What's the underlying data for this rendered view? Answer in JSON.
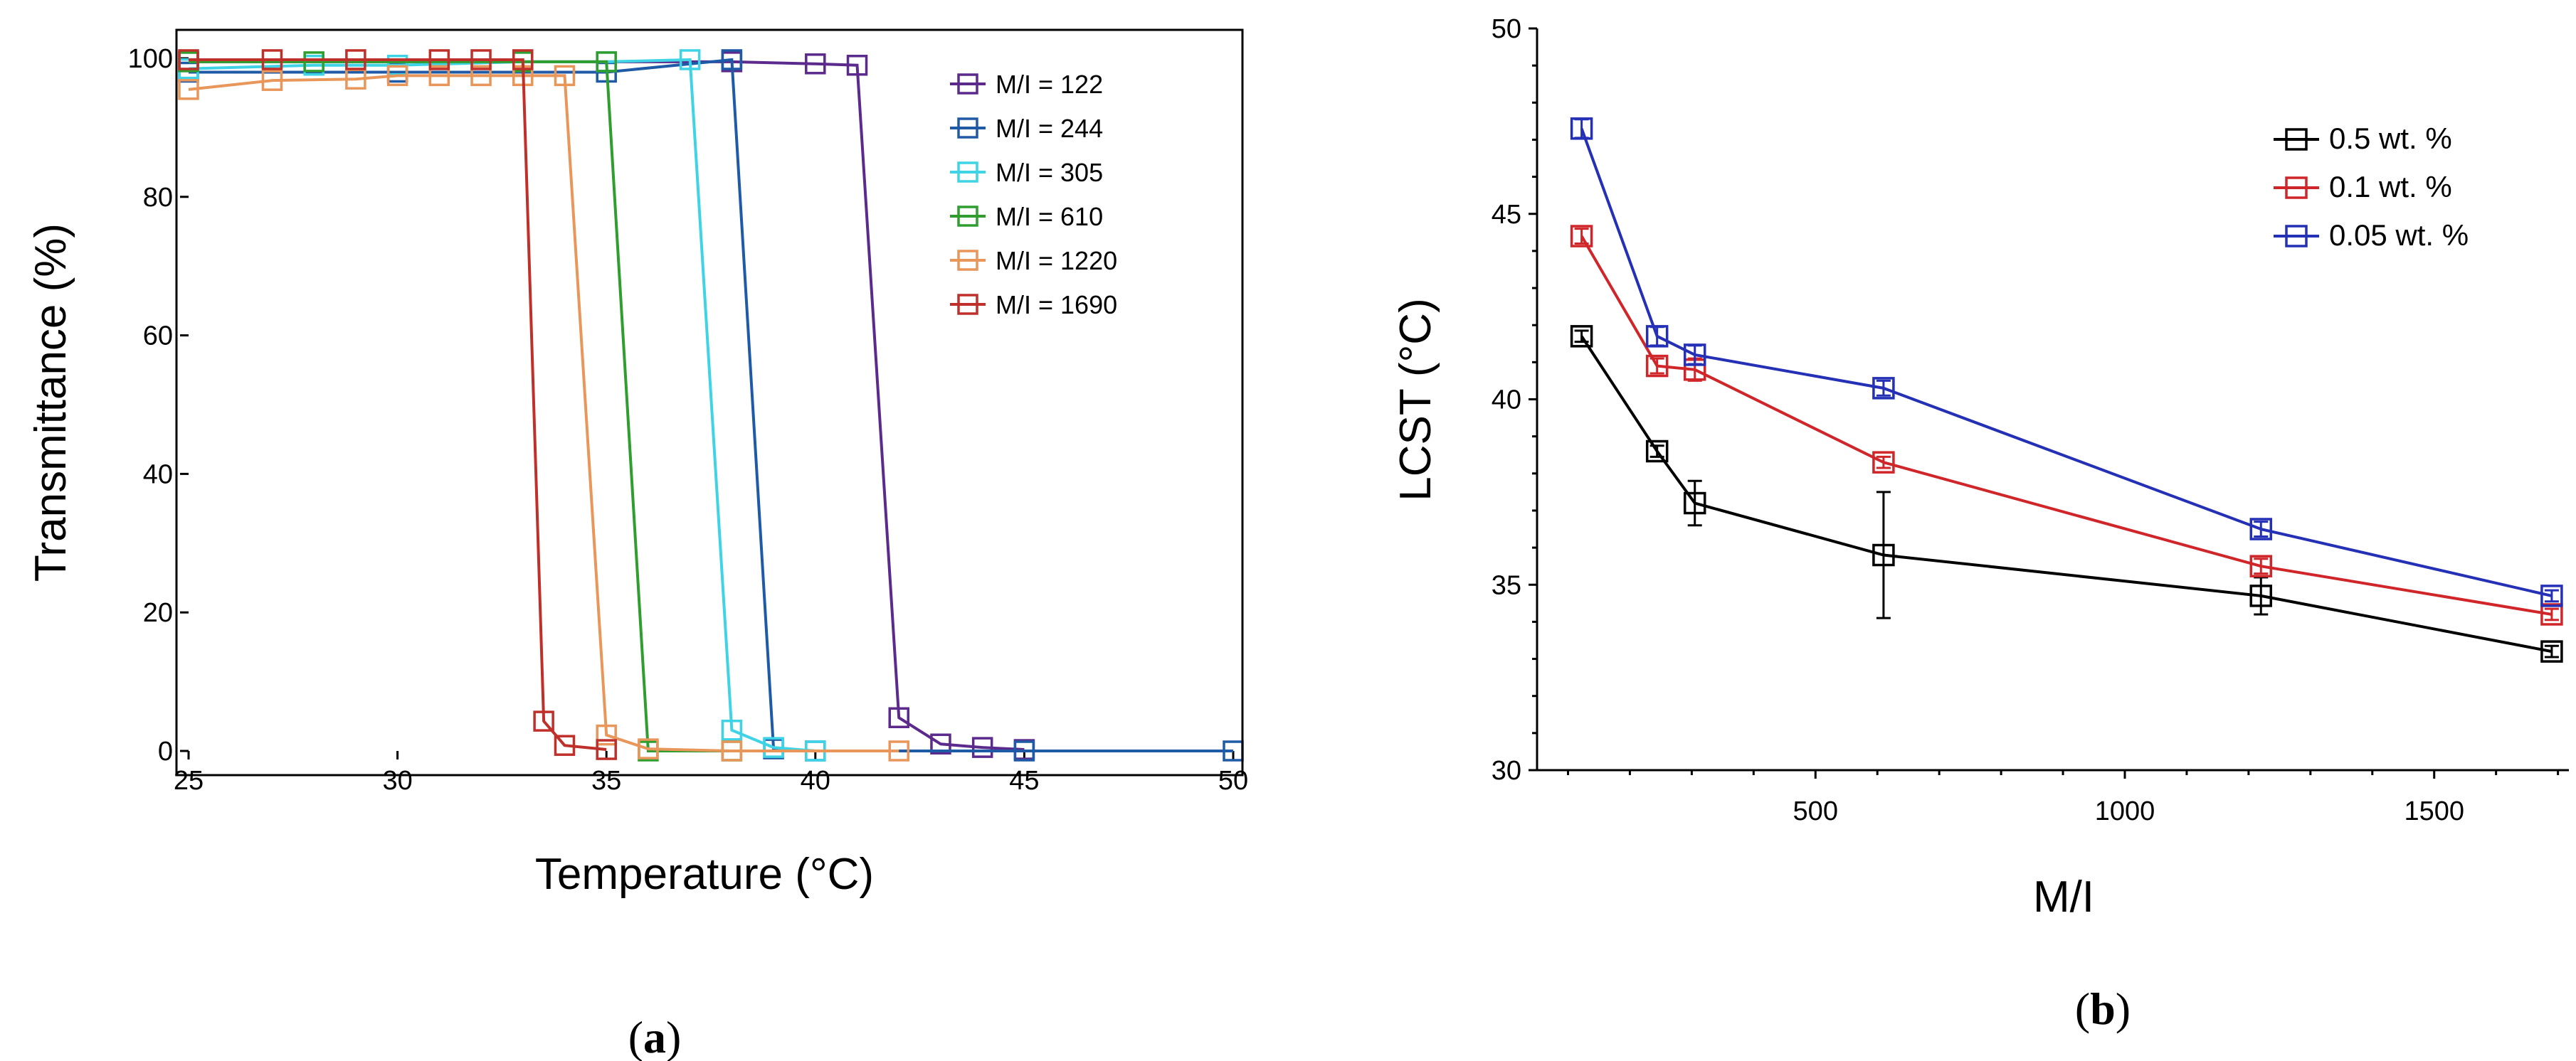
{
  "chart_data": [
    {
      "type": "line",
      "panel_label": {
        "open": "(",
        "letter": "a",
        "close": ")"
      },
      "xlabel": "Temperature (°C)",
      "ylabel": "Transmittance (%)",
      "xlim": [
        25,
        50
      ],
      "ylim": [
        0,
        100
      ],
      "xticks": [
        25,
        30,
        35,
        40,
        45,
        50
      ],
      "yticks": [
        0,
        20,
        40,
        60,
        80,
        100
      ],
      "legend_position": "top-right",
      "series": [
        {
          "name": "M/I = 122",
          "color": "#5b2a8c",
          "x": [
            25,
            38,
            40,
            41,
            42,
            43,
            44,
            45
          ],
          "y": [
            99.5,
            99.5,
            99.2,
            99,
            4.8,
            1,
            0.5,
            0.2
          ]
        },
        {
          "name": "M/I = 244",
          "color": "#1f5aa6",
          "x": [
            25,
            30,
            35,
            38,
            39,
            40,
            45,
            50
          ],
          "y": [
            98,
            98,
            98,
            99.8,
            0.3,
            0,
            0,
            0
          ]
        },
        {
          "name": "M/I = 305",
          "color": "#3fd3e6",
          "x": [
            25,
            28,
            30,
            33,
            35,
            37,
            38,
            39,
            40
          ],
          "y": [
            98.5,
            99,
            99,
            99.5,
            99.5,
            99.8,
            3,
            0.5,
            0
          ]
        },
        {
          "name": "M/I = 610",
          "color": "#2f9e2f",
          "x": [
            25,
            28,
            33,
            35,
            36,
            38
          ],
          "y": [
            99.5,
            99.5,
            99.5,
            99.5,
            0,
            0
          ]
        },
        {
          "name": "M/I = 1220",
          "color": "#e8965a",
          "x": [
            25,
            27,
            29,
            30,
            31,
            32,
            33,
            34,
            35,
            36,
            38,
            42
          ],
          "y": [
            95.5,
            96.8,
            97,
            97.5,
            97.5,
            97.5,
            97.5,
            97.5,
            2.3,
            0.3,
            0,
            0
          ]
        },
        {
          "name": "M/I = 1690",
          "color": "#c0302a",
          "x": [
            25,
            27,
            29,
            31,
            32,
            33,
            33.5,
            34,
            35
          ],
          "y": [
            99.8,
            99.8,
            99.8,
            99.8,
            99.8,
            99.8,
            4.3,
            0.8,
            0.2
          ]
        }
      ]
    },
    {
      "type": "line",
      "panel_label": {
        "open": "(",
        "letter": "b",
        "close": ")"
      },
      "xlabel": "M/I",
      "ylabel": "LCST (°C)",
      "xlim": [
        50,
        1720
      ],
      "ylim": [
        30,
        50
      ],
      "xticks": [
        500,
        1000,
        1500
      ],
      "yticks": [
        30,
        35,
        40,
        45,
        50
      ],
      "legend_position": "top-right",
      "series": [
        {
          "name": "0.5  wt. %",
          "color": "#000000",
          "x": [
            122,
            244,
            305,
            610,
            1220,
            1690
          ],
          "y": [
            41.7,
            38.6,
            37.2,
            35.8,
            34.7,
            33.2
          ],
          "err": [
            0.15,
            0.15,
            0.6,
            1.7,
            0.5,
            0.15
          ]
        },
        {
          "name": "0.1  wt. %",
          "color": "#d0262a",
          "x": [
            122,
            244,
            305,
            610,
            1220,
            1690
          ],
          "y": [
            44.4,
            40.9,
            40.8,
            38.3,
            35.5,
            34.2
          ],
          "err": [
            0.2,
            0.2,
            0.3,
            0.15,
            0.2,
            0.15
          ]
        },
        {
          "name": "0.05 wt. %",
          "color": "#2430b5",
          "x": [
            122,
            244,
            305,
            610,
            1220,
            1690
          ],
          "y": [
            47.3,
            41.7,
            41.2,
            40.3,
            36.5,
            34.7
          ],
          "err": [
            0.25,
            0.25,
            0.25,
            0.2,
            0.2,
            0.15
          ]
        }
      ]
    }
  ]
}
